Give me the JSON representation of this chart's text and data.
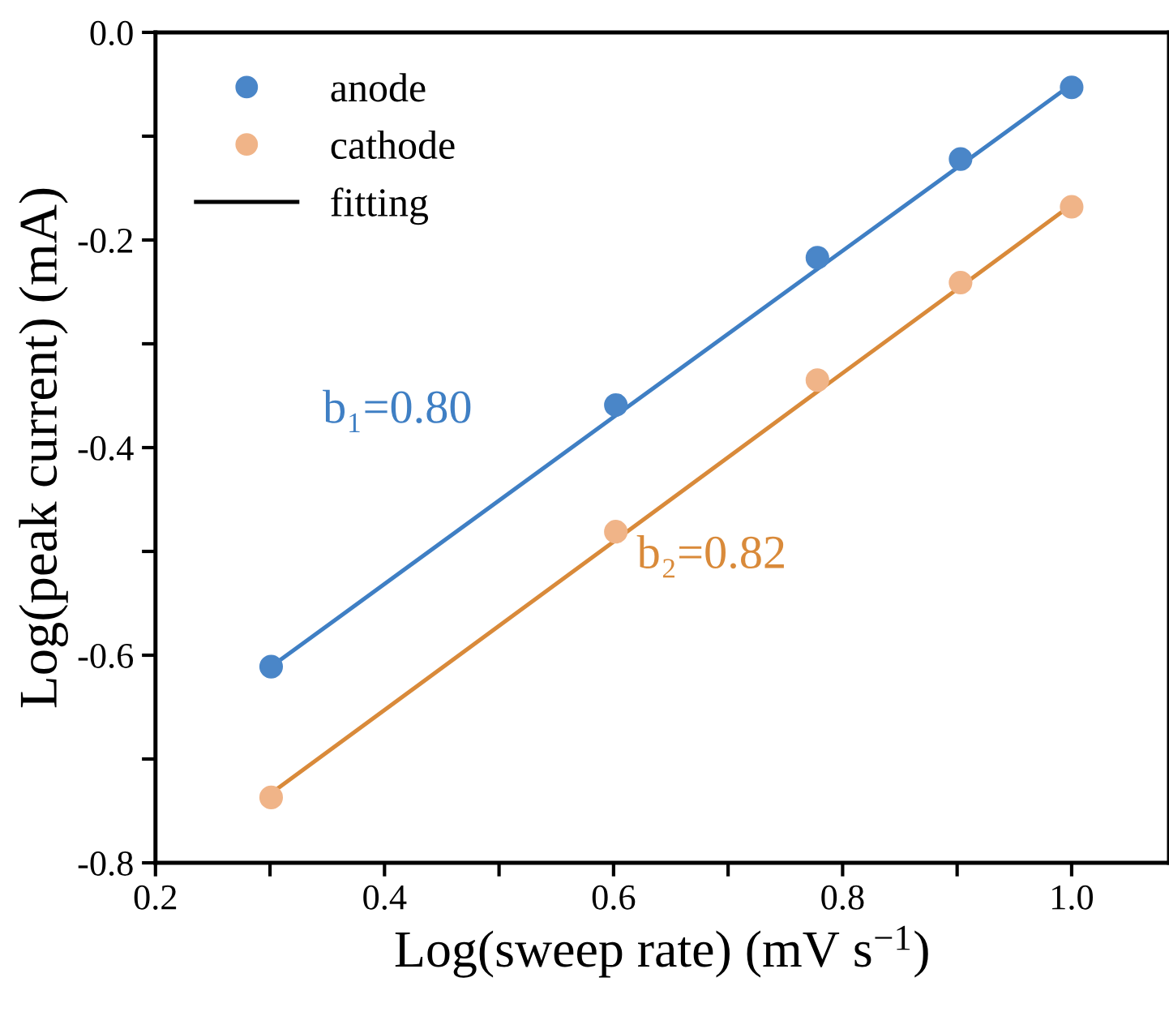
{
  "chart_data": {
    "type": "scatter",
    "xlabel": "Log(sweep rate) (mV s$^{−1}$)",
    "ylabel": "Log(peak current) (mA)",
    "x": [
      0.301,
      0.602,
      0.778,
      0.903,
      1.0
    ],
    "series": [
      {
        "name": "anode",
        "color": "#4a86c8",
        "values": [
          -0.611,
          -0.359,
          -0.217,
          -0.122,
          -0.053
        ]
      },
      {
        "name": "cathode",
        "color": "#f0b488",
        "values": [
          -0.737,
          -0.481,
          -0.335,
          -0.241,
          -0.168
        ]
      },
      {
        "name": "fitting",
        "type": "line",
        "marker": "none",
        "color": "#000000",
        "values": [
          null,
          null,
          null,
          null,
          null
        ]
      },
      {
        "type": "line",
        "marker": "none",
        "color": "#3f7fc4",
        "values": [
          -0.611,
          -0.369,
          -0.228,
          -0.128,
          -0.05
        ]
      },
      {
        "type": "line",
        "marker": "none",
        "color": "#d98a3a",
        "values": [
          -0.733,
          -0.489,
          -0.346,
          -0.245,
          -0.166
        ]
      }
    ],
    "annotations": [
      "b₁=0.80",
      "b₂=0.82"
    ],
    "xlim": [
      0.2,
      1.085
    ],
    "ylim": [
      -0.8,
      0.0
    ],
    "xticks": [
      {
        "value": 0.2,
        "label": "0.2"
      },
      {
        "value": 0.3,
        "label": null
      },
      {
        "value": 0.4,
        "label": "0.4"
      },
      {
        "value": 0.5,
        "label": null
      },
      {
        "value": 0.6,
        "label": "0.6"
      },
      {
        "value": 0.7,
        "label": null
      },
      {
        "value": 0.8,
        "label": "0.8"
      },
      {
        "value": 0.9,
        "label": null
      },
      {
        "value": 1.0,
        "label": "1.0"
      }
    ],
    "yticks": [
      {
        "value": -0.8,
        "label": "-0.8"
      },
      {
        "value": -0.7,
        "label": null
      },
      {
        "value": -0.6,
        "label": "-0.6"
      },
      {
        "value": -0.5,
        "label": null
      },
      {
        "value": -0.4,
        "label": "-0.4"
      },
      {
        "value": -0.3,
        "label": null
      },
      {
        "value": -0.2,
        "label": "-0.2"
      },
      {
        "value": -0.1,
        "label": null
      },
      {
        "value": 0.0,
        "label": "0.0"
      }
    ],
    "marker": "circle",
    "legend": "top left",
    "grid": false
  }
}
